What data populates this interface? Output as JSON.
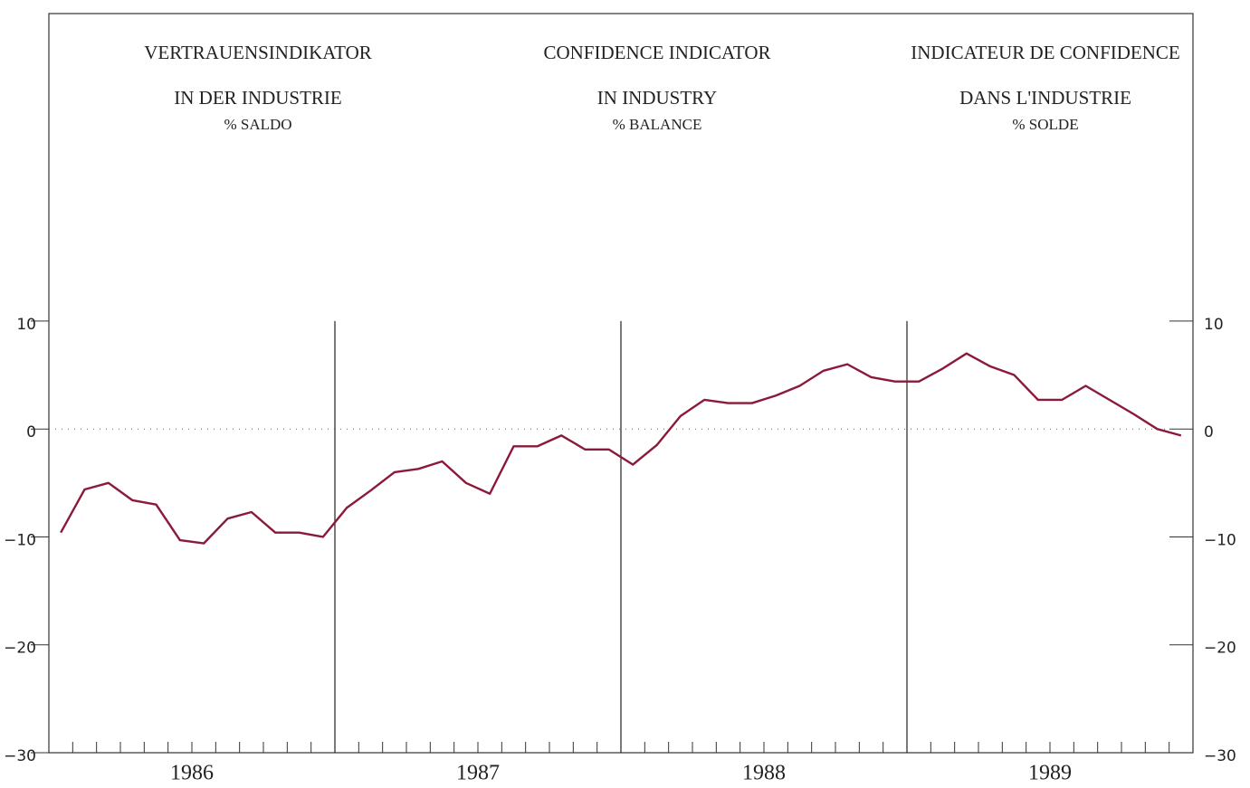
{
  "chart_data": {
    "type": "line",
    "titles": [
      {
        "line1": "VERTRAUENSINDIKATOR",
        "line2": "IN DER INDUSTRIE",
        "unit": "% SALDO"
      },
      {
        "line1": "CONFIDENCE INDICATOR",
        "line2": "IN INDUSTRY",
        "unit": "% BALANCE"
      },
      {
        "line1": "INDICATEUR DE CONFIDENCE",
        "line2": "DANS L'INDUSTRIE",
        "unit": "% SOLDE"
      }
    ],
    "years": [
      1986,
      1987,
      1988,
      1989
    ],
    "categories": [
      null,
      null,
      null,
      null,
      null,
      null,
      null,
      null,
      null,
      null,
      null,
      null,
      null,
      null,
      null,
      null,
      null,
      null,
      null,
      null,
      null,
      null,
      null,
      null,
      null,
      null,
      null,
      null,
      null,
      null,
      null,
      null,
      null,
      null,
      null,
      null,
      null,
      null,
      null,
      null,
      null,
      null,
      null,
      null,
      null,
      null,
      null,
      null
    ],
    "series": [
      {
        "name": null,
        "color": "#8b1a3a",
        "values": [
          -9.6,
          -5.6,
          -5.0,
          -6.6,
          -7.0,
          -10.3,
          -10.6,
          -8.3,
          -7.7,
          -9.6,
          -9.6,
          -10.0,
          -7.3,
          -5.7,
          -4.0,
          -3.7,
          -3.0,
          -5.0,
          -6.0,
          -1.6,
          -1.6,
          -0.6,
          -1.9,
          -1.9,
          -3.3,
          -1.5,
          1.2,
          2.7,
          2.4,
          2.4,
          3.1,
          4.0,
          5.4,
          6.0,
          4.8,
          4.4,
          4.4,
          5.6,
          7.0,
          5.8,
          5.0,
          2.7,
          2.7,
          4.0,
          2.7,
          1.4,
          0.0,
          -0.6
        ]
      }
    ],
    "ylim": [
      -30,
      38.5
    ],
    "yticks": [
      {
        "value": -30,
        "label": "−30"
      },
      {
        "value": -20,
        "label": "−20"
      },
      {
        "value": -10,
        "label": "−10"
      },
      0,
      10
    ],
    "reference_line": 0
  }
}
